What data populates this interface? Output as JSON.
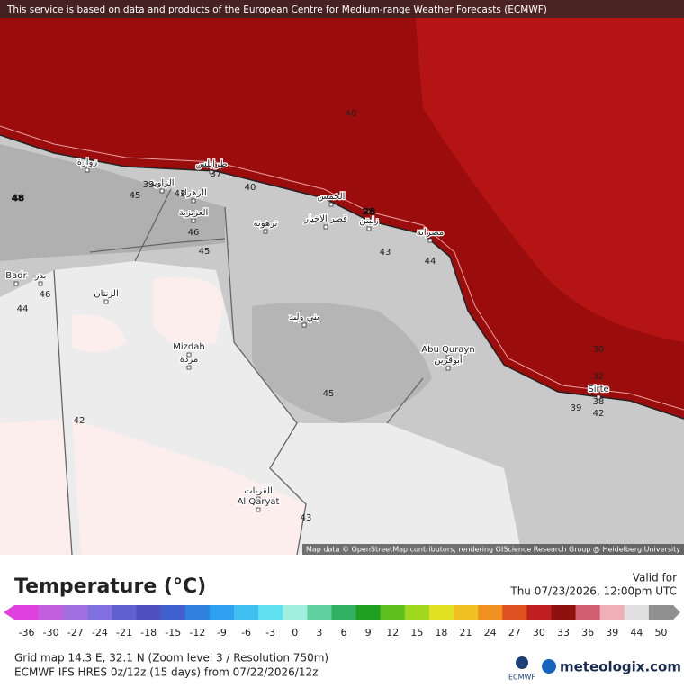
{
  "banner": "This service is based on data and products of the European Centre for Medium-range Weather Forecasts (ECMWF)",
  "map": {
    "places": [
      "زوارة",
      "طرابلس",
      "الزاوية",
      "الزهراء",
      "العزيزية",
      "ترهونة",
      "الخمس",
      "قصر الاخيار",
      "زليتن",
      "مصراتة",
      "Badr",
      "بدر",
      "الزنتان",
      "بني وليد",
      "Mizdah",
      "مزدة",
      "Abu Qurayn",
      "أبوقرين",
      "Sirte",
      "القريات",
      "Al Qaryat"
    ],
    "contour_labels": [
      "48",
      "28",
      "45",
      "39",
      "43",
      "46",
      "45",
      "40",
      "43",
      "44",
      "46",
      "44",
      "45",
      "42",
      "43",
      "39",
      "42",
      "38",
      "30",
      "32",
      "40",
      "37"
    ],
    "attribution": "Map data © OpenStreetMap contributors, rendering GIScience Research Group @ Heidelberg University"
  },
  "legend": {
    "title": "Temperature (°C)",
    "valid_label": "Valid for",
    "valid_time": "Thu 07/23/2026, 12:00pm UTC",
    "ticks": [
      -36,
      -30,
      -27,
      -24,
      -21,
      -18,
      -15,
      -12,
      -9,
      -6,
      -3,
      0,
      3,
      6,
      9,
      12,
      15,
      18,
      21,
      24,
      27,
      30,
      33,
      36,
      39,
      44,
      50
    ],
    "colors": [
      "#e040e0",
      "#c060e0",
      "#a070e0",
      "#8070e0",
      "#6060d0",
      "#5050c0",
      "#4060d0",
      "#3080e0",
      "#30a0f0",
      "#40c0f0",
      "#60e0f0",
      "#a0f0e0",
      "#60d0a0",
      "#30b060",
      "#20a020",
      "#60c020",
      "#a0d820",
      "#e0e020",
      "#f0c020",
      "#f09020",
      "#e05020",
      "#c02020",
      "#901010",
      "#d06070",
      "#f0b0b8",
      "#e0e0e0",
      "#909090"
    ]
  },
  "footer": {
    "grid_info": "Grid map 14.3 E, 32.1 N (Zoom level 3 / Resolution 750m)",
    "model_info": "ECMWF IFS HRES 0z/12z (15 days) from 07/22/2026/12z",
    "ecmwf": "ECMWF",
    "brand": "meteologix.com"
  }
}
